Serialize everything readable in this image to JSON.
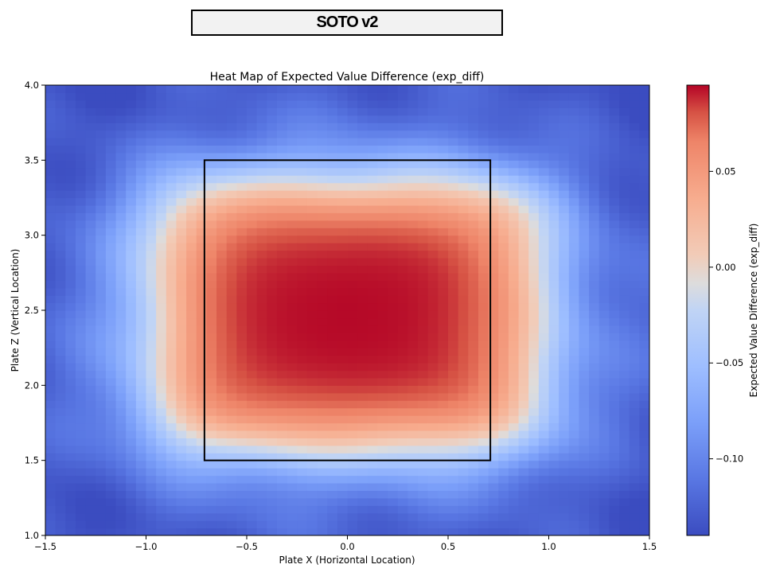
{
  "header": {
    "banner_title": "SOTO v2"
  },
  "chart_data": {
    "type": "heatmap",
    "title": "Heat Map of Expected Value Difference (exp_diff)",
    "xlabel": "Plate X (Horizontal Location)",
    "ylabel": "Plate Z (Vertical Location)",
    "xlim": [
      -1.5,
      1.5
    ],
    "ylim": [
      1.0,
      4.0
    ],
    "xticks": [
      "−1.5",
      "−1.0",
      "−0.5",
      "0.0",
      "0.5",
      "1.0",
      "1.5"
    ],
    "yticks": [
      "1.0",
      "1.5",
      "2.0",
      "2.5",
      "3.0",
      "3.5",
      "4.0"
    ],
    "strike_zone": {
      "x": [
        -0.71,
        0.71
      ],
      "z": [
        1.5,
        3.5
      ]
    },
    "colormap": "coolwarm",
    "colorbar": {
      "label": "Expected Value Difference (exp_diff)",
      "range": [
        -0.14,
        0.095
      ],
      "ticks": [
        "−0.10",
        "−0.05",
        "0.00",
        "0.05"
      ]
    },
    "field_model": {
      "peak_value": 0.095,
      "floor_value": -0.14,
      "in_zone_x_half_width": 0.95,
      "in_zone_z_range": [
        1.58,
        3.35
      ],
      "edge_falloff": 0.14,
      "cells_x": 60,
      "cells_z": 60
    }
  }
}
